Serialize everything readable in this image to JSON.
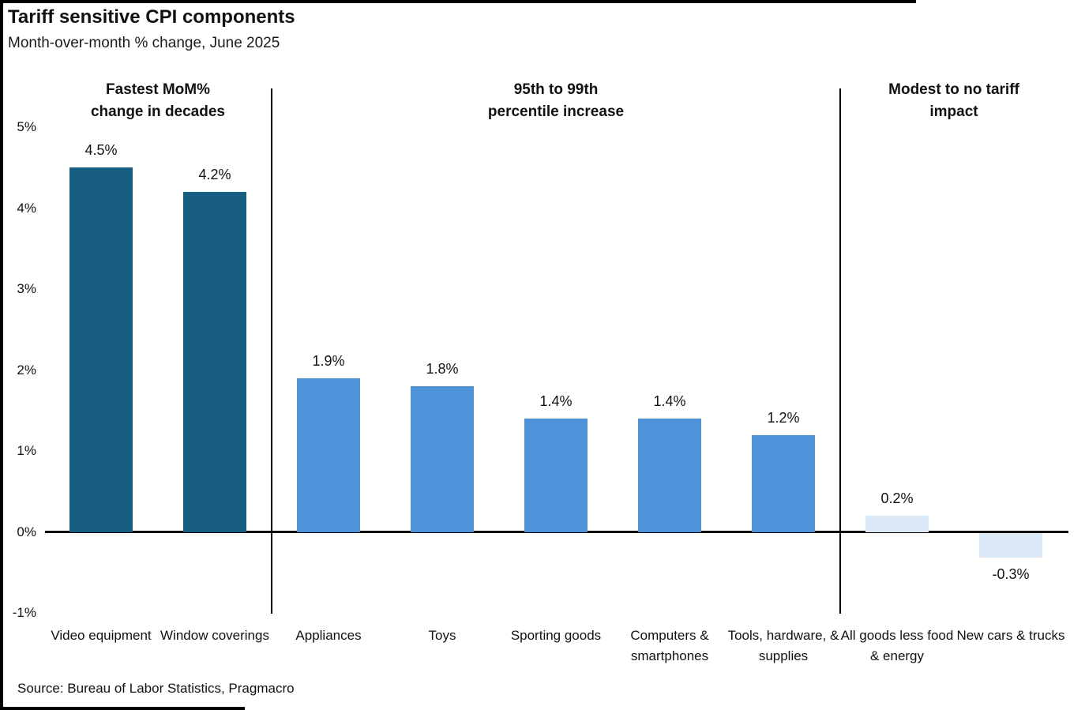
{
  "header": {
    "title": "Tariff sensitive CPI components",
    "subtitle": "Month-over-month % change, June 2025"
  },
  "source": "Source: Bureau of Labor Statistics, Pragmacro",
  "colors": {
    "dark_blue": "#175E82",
    "medium_blue": "#4E93D9",
    "light_blue": "#DBE8F5",
    "axis": "#000000",
    "text": "#111111"
  },
  "chart_data": {
    "type": "bar",
    "title": "Tariff sensitive CPI components",
    "subtitle": "Month-over-month % change, June 2025",
    "xlabel": "",
    "ylabel": "",
    "ylim": [
      -1,
      5
    ],
    "yticks": [
      5,
      4,
      3,
      2,
      1,
      0,
      -1
    ],
    "ytick_labels": [
      "5%",
      "4%",
      "3%",
      "2%",
      "1%",
      "0%",
      "-1%"
    ],
    "grid": false,
    "legend": "none",
    "groups": [
      {
        "label_lines": [
          "Fastest MoM%",
          "change in decades"
        ],
        "bar_color": "#175E82",
        "bars": [
          {
            "category": "Video equipment",
            "value": 4.5,
            "value_label": "4.5%"
          },
          {
            "category": "Window coverings",
            "value": 4.2,
            "value_label": "4.2%"
          }
        ]
      },
      {
        "label_lines": [
          "95th to 99th",
          "percentile increase"
        ],
        "bar_color": "#4E93D9",
        "bars": [
          {
            "category": "Appliances",
            "value": 1.9,
            "value_label": "1.9%"
          },
          {
            "category": "Toys",
            "value": 1.8,
            "value_label": "1.8%"
          },
          {
            "category": "Sporting goods",
            "value": 1.4,
            "value_label": "1.4%"
          },
          {
            "category": "Computers & smartphones",
            "value": 1.4,
            "value_label": "1.4%"
          },
          {
            "category": "Tools, hardware, & supplies",
            "value": 1.2,
            "value_label": "1.2%"
          }
        ]
      },
      {
        "label_lines": [
          "Modest to no tariff",
          "impact"
        ],
        "bar_color": "#DBE8F5",
        "bars": [
          {
            "category": "All goods less food & energy",
            "value": 0.2,
            "value_label": "0.2%"
          },
          {
            "category": "New cars & trucks",
            "value": -0.3,
            "value_label": "-0.3%"
          }
        ]
      }
    ]
  }
}
